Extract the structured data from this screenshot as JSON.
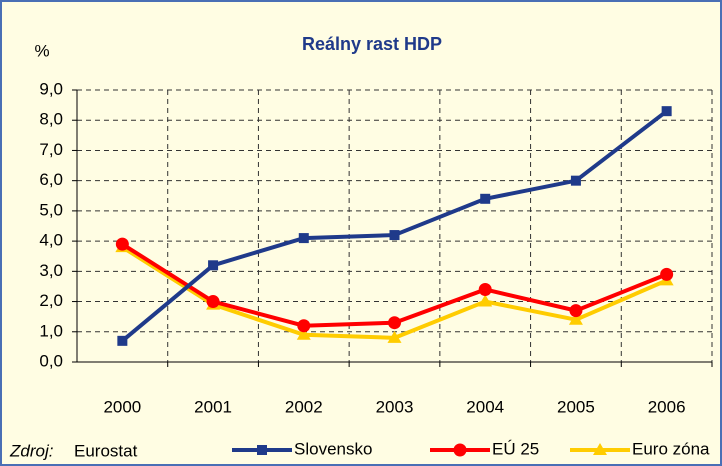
{
  "chart_data": {
    "type": "line",
    "title": "Reálny rast HDP",
    "y_label": "%",
    "categories": [
      "2000",
      "2001",
      "2002",
      "2003",
      "2004",
      "2005",
      "2006"
    ],
    "series": [
      {
        "name": "Slovensko",
        "color": "#1f3a8a",
        "marker": "square",
        "values": [
          0.7,
          3.2,
          4.1,
          4.2,
          5.4,
          6.0,
          8.3
        ]
      },
      {
        "name": "EÚ 25",
        "color": "#ff0000",
        "marker": "circle",
        "values": [
          3.9,
          2.0,
          1.2,
          1.3,
          2.4,
          1.7,
          2.9
        ]
      },
      {
        "name": "Euro zóna",
        "color": "#ffcc00",
        "marker": "triangle",
        "values": [
          3.8,
          1.9,
          0.9,
          0.8,
          2.0,
          1.4,
          2.7
        ]
      }
    ],
    "ylim": [
      0,
      9
    ],
    "yticks": [
      {
        "value": 0,
        "label": "0,0"
      },
      {
        "value": 1,
        "label": "1,0"
      },
      {
        "value": 2,
        "label": "2,0"
      },
      {
        "value": 3,
        "label": "3,0"
      },
      {
        "value": 4,
        "label": "4,0"
      },
      {
        "value": 5,
        "label": "5,0"
      },
      {
        "value": 6,
        "label": "6,0"
      },
      {
        "value": 7,
        "label": "7,0"
      },
      {
        "value": 8,
        "label": "8,0"
      },
      {
        "value": 9,
        "label": "9,0"
      }
    ],
    "grid": true,
    "source_label": "Zdroj:",
    "source": "Eurostat"
  }
}
